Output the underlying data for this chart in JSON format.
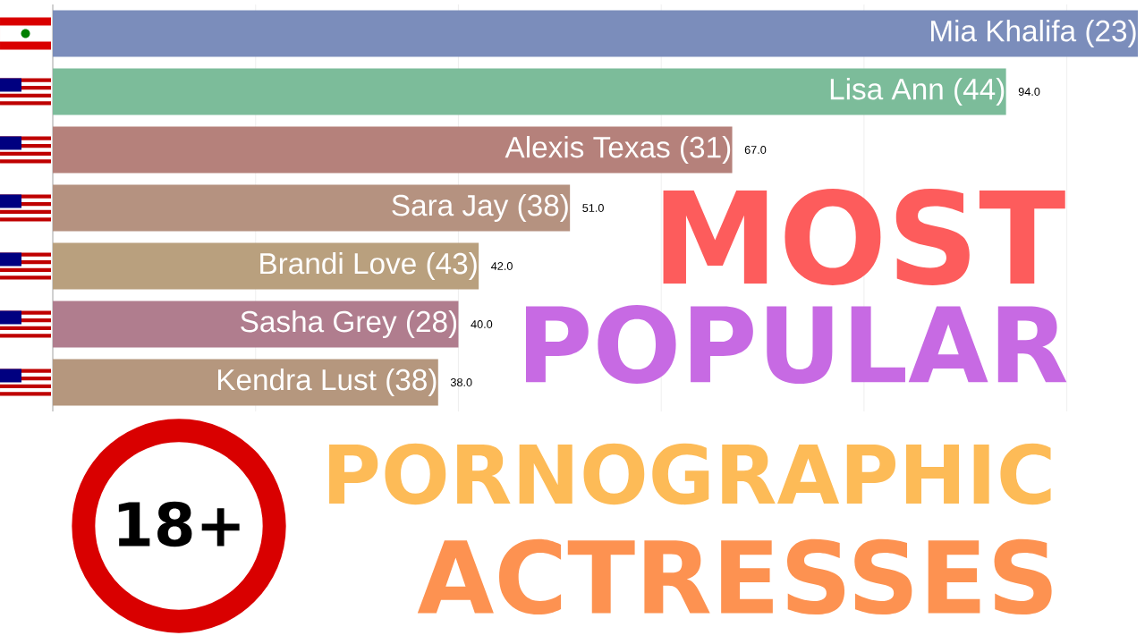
{
  "chart_data": {
    "type": "bar",
    "orientation": "horizontal",
    "categories": [
      "Mia Khalifa (23)",
      "Lisa Ann (44)",
      "Alexis Texas (31)",
      "Sara Jay (38)",
      "Brandi Love (43)",
      "Sasha Grey (28)",
      "Kendra Lust (38)"
    ],
    "values": [
      107,
      94,
      67,
      51,
      42,
      40,
      38
    ],
    "value_labels": [
      null,
      "94.0",
      "67.0",
      "51.0",
      "42.0",
      "40.0",
      "38.0"
    ],
    "colors": [
      "#7b8dbb",
      "#7cbc9a",
      "#b5817b",
      "#b59280",
      "#b9a07e",
      "#b07d8e",
      "#b5977e"
    ],
    "xlim": [
      0,
      107
    ],
    "xticks": [
      {
        "value": 0,
        "label": null
      },
      {
        "value": 20,
        "label": null
      },
      {
        "value": 40,
        "label": null
      },
      {
        "value": 60,
        "label": null
      },
      {
        "value": 80,
        "label": null
      },
      {
        "value": 100,
        "label": null
      }
    ],
    "grid": "x",
    "annotations": [
      "MOST",
      "POPULAR",
      "PORNOGRAPHIC",
      "ACTRESSES",
      "18+"
    ]
  }
}
